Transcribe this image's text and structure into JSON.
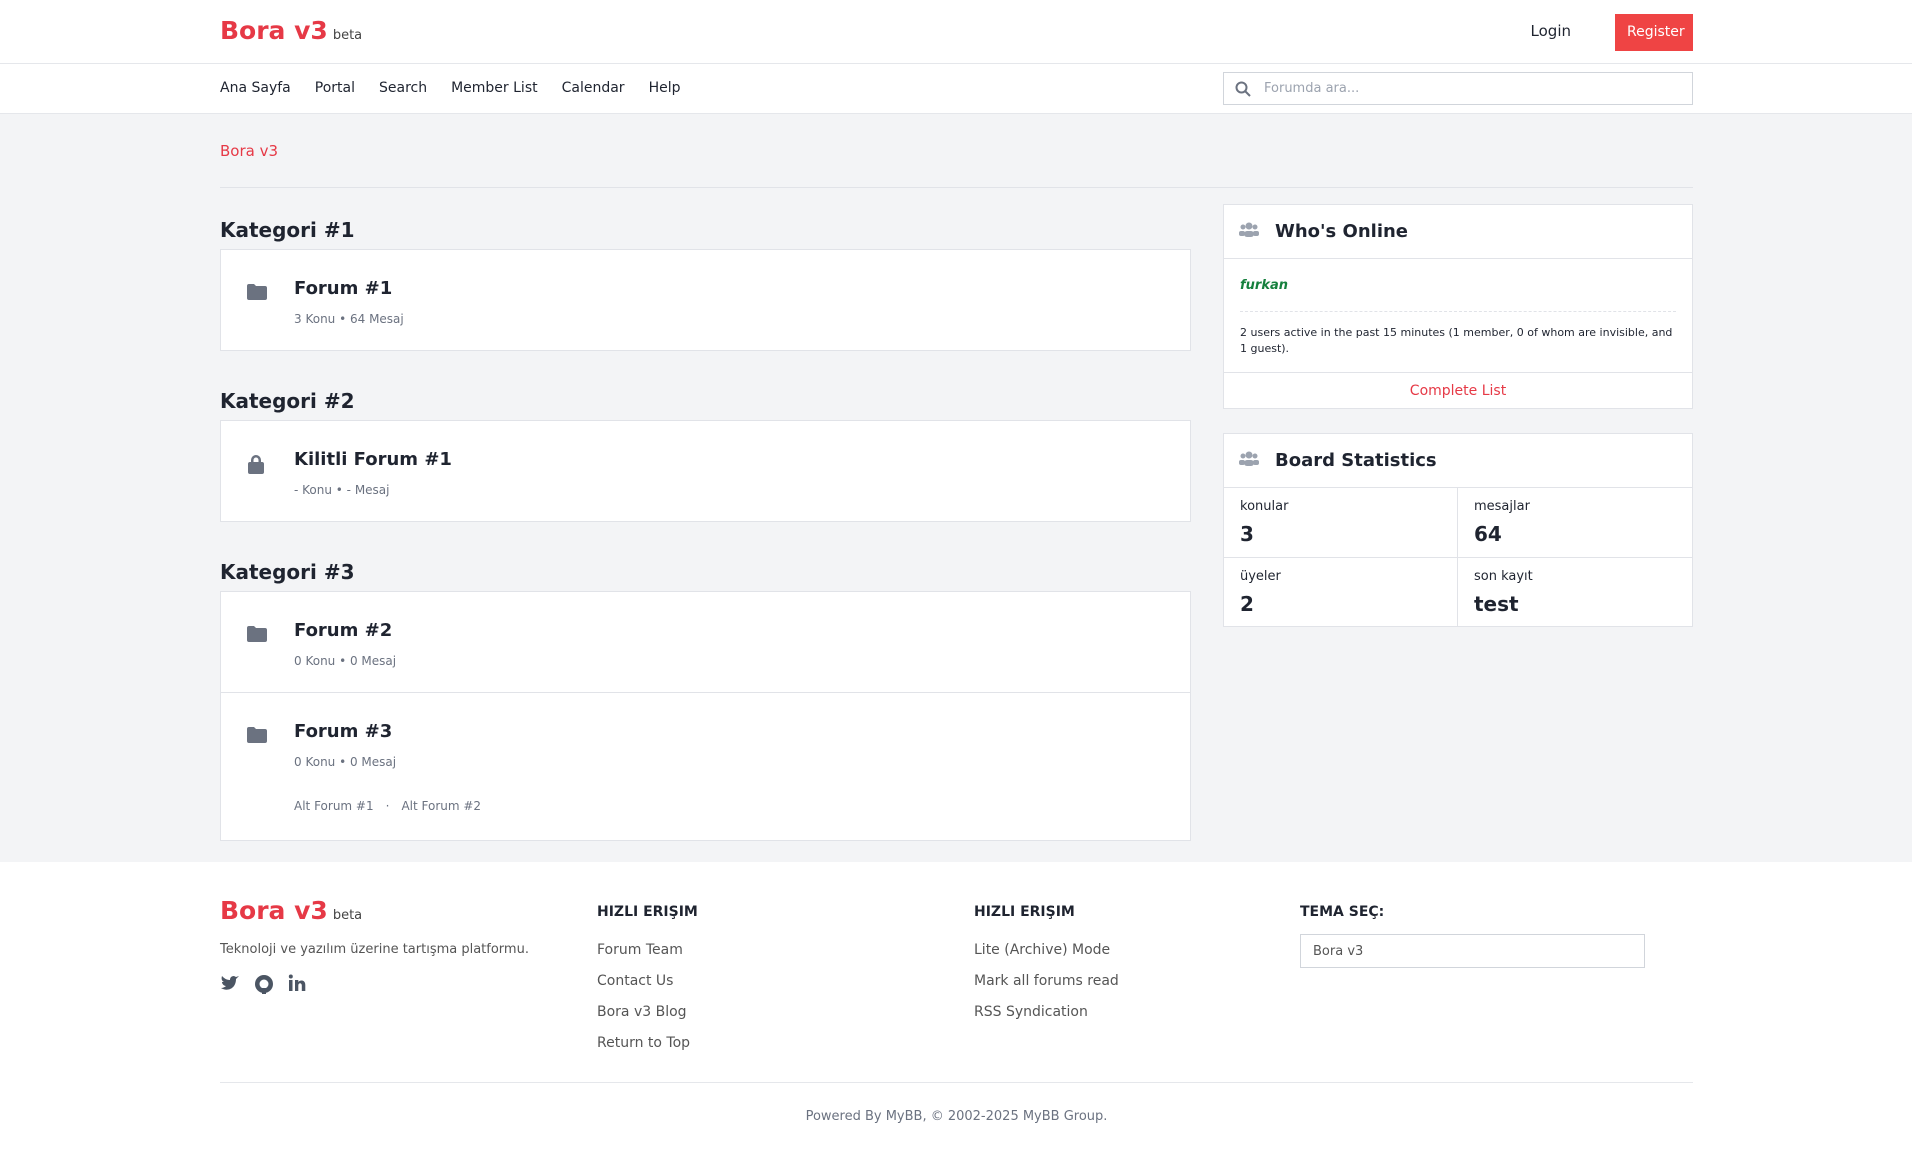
{
  "header": {
    "brand": "Bora v3",
    "badge": "beta",
    "login": "Login",
    "register": "Register"
  },
  "nav": {
    "items": [
      "Ana Sayfa",
      "Portal",
      "Search",
      "Member List",
      "Calendar",
      "Help"
    ],
    "search_placeholder": "Forumda ara..."
  },
  "breadcrumb": "Bora v3",
  "categories": [
    {
      "title": "Kategori #1",
      "forums": [
        {
          "name": "Forum #1",
          "stats": "3 Konu • 64 Mesaj",
          "icon": "folder"
        }
      ]
    },
    {
      "title": "Kategori #2",
      "forums": [
        {
          "name": "Kilitli Forum #1",
          "stats": "- Konu • - Mesaj",
          "icon": "lock"
        }
      ]
    },
    {
      "title": "Kategori #3",
      "forums": [
        {
          "name": "Forum #2",
          "stats": "0 Konu • 0 Mesaj",
          "icon": "folder"
        },
        {
          "name": "Forum #3",
          "stats": "0 Konu • 0 Mesaj",
          "icon": "folder",
          "subforums": [
            "Alt Forum #1",
            "Alt Forum #2"
          ]
        }
      ]
    }
  ],
  "who_online": {
    "title": "Who's Online",
    "user": "furkan",
    "text": "2 users active in the past 15 minutes (1 member, 0 of whom are invisible, and 1 guest).",
    "link": "Complete List"
  },
  "board_stats": {
    "title": "Board Statistics",
    "items": [
      {
        "label": "konular",
        "value": 3
      },
      {
        "label": "mesajlar",
        "value": 64
      },
      {
        "label": "üyeler",
        "value": 2
      },
      {
        "label": "son kayıt",
        "value": "test"
      }
    ]
  },
  "footer": {
    "brand": "Bora v3",
    "badge": "beta",
    "tagline": "Teknoloji ve yazılım üzerine tartışma platformu.",
    "columns": [
      {
        "title": "HIZLI ERIŞIM",
        "links": [
          "Forum Team",
          "Contact Us",
          "Bora v3 Blog",
          "Return to Top"
        ]
      },
      {
        "title": "HIZLI ERIŞIM",
        "links": [
          "Lite (Archive) Mode",
          "Mark all forums read",
          "RSS Syndication"
        ]
      }
    ],
    "theme_title": "TEMA SEÇ:",
    "theme_value": "Bora v3",
    "copyright": "Powered By MyBB, © 2002-2025 MyBB Group."
  }
}
